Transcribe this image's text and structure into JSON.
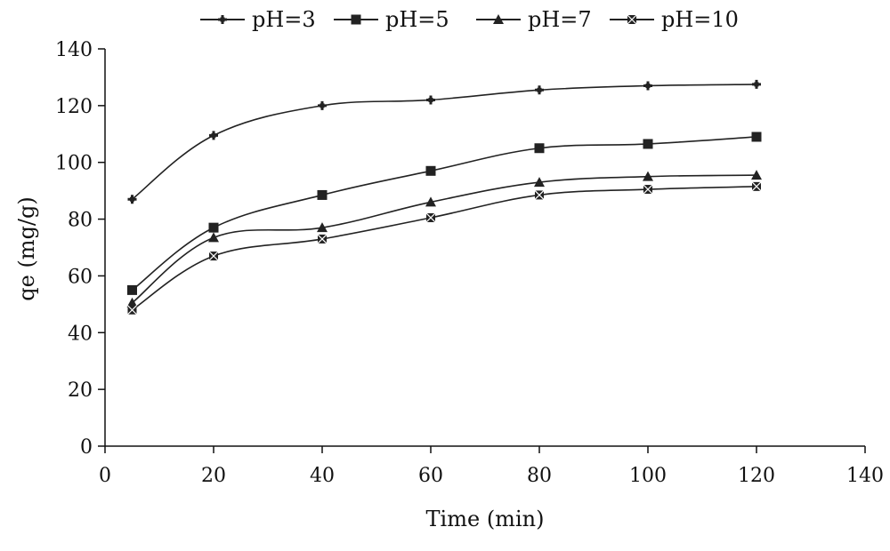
{
  "chart_data": {
    "type": "line",
    "xlabel": "Time (min)",
    "ylabel": "qe (mg/g)",
    "xlim": [
      0,
      140
    ],
    "ylim": [
      0,
      140
    ],
    "xticks": [
      "0",
      "20",
      "40",
      "60",
      "80",
      "100",
      "120",
      "140"
    ],
    "yticks": [
      "0",
      "20",
      "40",
      "60",
      "80",
      "100",
      "120",
      "140"
    ],
    "grid": false,
    "legend_position": "top",
    "x": [
      5,
      20,
      40,
      60,
      80,
      100,
      120
    ],
    "series": [
      {
        "name": "pH=3",
        "marker": "plus",
        "values": [
          87,
          109.5,
          120,
          122,
          125.5,
          127,
          127.5
        ]
      },
      {
        "name": "pH=5",
        "marker": "square",
        "values": [
          55,
          77,
          88.5,
          97,
          105,
          106.5,
          109
        ]
      },
      {
        "name": "pH=7",
        "marker": "triangle",
        "values": [
          50.5,
          73.5,
          77,
          86,
          93,
          95,
          95.5
        ]
      },
      {
        "name": "pH=10",
        "marker": "x-square",
        "values": [
          48,
          67,
          73,
          80.5,
          88.5,
          90.5,
          91.5
        ]
      }
    ],
    "line_color": "#222222"
  }
}
